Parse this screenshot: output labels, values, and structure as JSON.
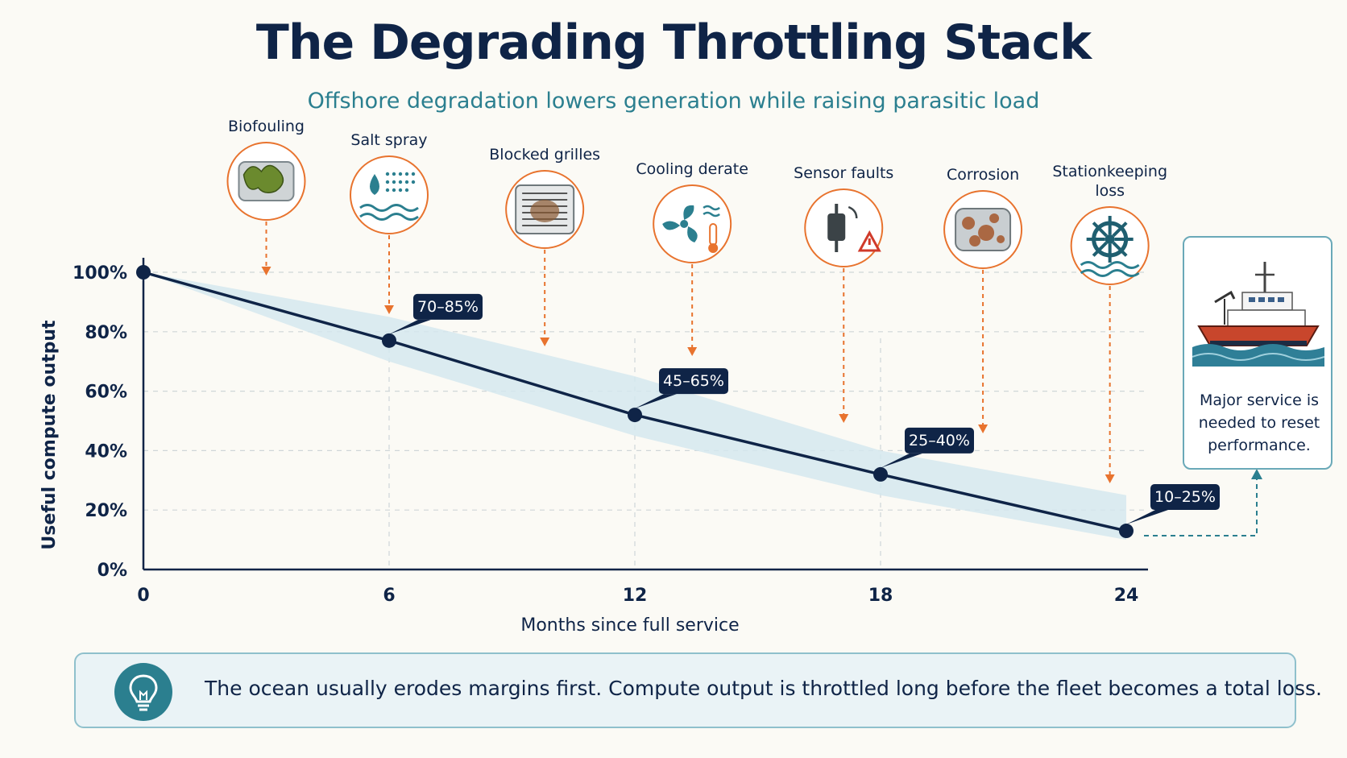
{
  "title": "The Degrading Throttling Stack",
  "subtitle": "Offshore degradation lowers generation while raising parasitic load",
  "conditions": [
    {
      "label": "Biofouling",
      "month": 3.0,
      "icon": "biofouling-icon"
    },
    {
      "label": "Salt spray",
      "month": 6.0,
      "icon": "salt-spray-icon"
    },
    {
      "label": "Blocked grilles",
      "month": 9.8,
      "icon": "blocked-grille-icon"
    },
    {
      "label": "Cooling derate",
      "month": 13.4,
      "icon": "cooling-fan-icon"
    },
    {
      "label": "Sensor faults",
      "month": 17.1,
      "icon": "sensor-fault-icon"
    },
    {
      "label": "Corrosion",
      "month": 20.5,
      "icon": "corrosion-icon"
    },
    {
      "label": "Stationkeeping loss",
      "month": 23.6,
      "icon": "ship-wheel-icon"
    }
  ],
  "service_note": "Major service is needed to reset performance.",
  "takeaway": "The ocean usually erodes margins first. Compute output is throttled long before the fleet becomes a total loss.",
  "colors": {
    "line": "#0f2447",
    "band": "#d5e7ef",
    "accent": "#e8732e",
    "teal": "#2b7f8f"
  },
  "chart_data": {
    "type": "line",
    "xlabel": "Months since full service",
    "ylabel": "Useful compute output",
    "xlim": [
      0,
      24
    ],
    "ylim": [
      0,
      100
    ],
    "x_ticks": [
      "0",
      "6",
      "12",
      "18",
      "24"
    ],
    "y_ticks": [
      "0%",
      "20%",
      "40%",
      "60%",
      "80%",
      "100%"
    ],
    "grid": true,
    "series": [
      {
        "points": [
          {
            "x": 0,
            "y": 100
          },
          {
            "x": 6,
            "y": 77
          },
          {
            "x": 12,
            "y": 52
          },
          {
            "x": 18,
            "y": 32
          },
          {
            "x": 24,
            "y": 13
          }
        ]
      }
    ],
    "range_band": [
      {
        "x": 0,
        "low": 100,
        "high": 100
      },
      {
        "x": 6,
        "low": 70,
        "high": 85
      },
      {
        "x": 12,
        "low": 45,
        "high": 65
      },
      {
        "x": 18,
        "low": 25,
        "high": 40
      },
      {
        "x": 24,
        "low": 10,
        "high": 25
      }
    ],
    "annotations": [
      {
        "x": 6,
        "y": 77,
        "text": "70–85%"
      },
      {
        "x": 12,
        "y": 52,
        "text": "45–65%"
      },
      {
        "x": 18,
        "y": 32,
        "text": "25–40%"
      },
      {
        "x": 24,
        "y": 13,
        "text": "10–25%"
      }
    ]
  }
}
